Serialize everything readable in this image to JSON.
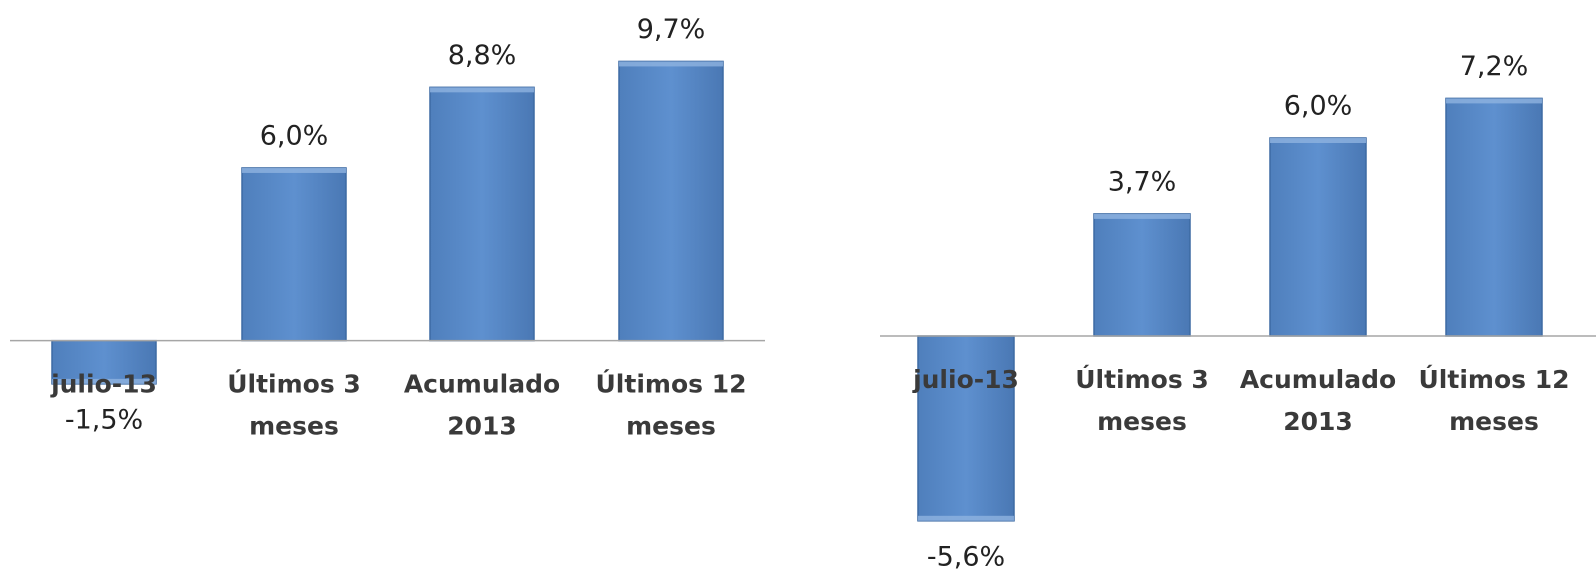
{
  "chart_data": [
    {
      "type": "bar",
      "categories": [
        [
          "julio-13"
        ],
        [
          "Últimos 3",
          "meses"
        ],
        [
          "Acumulado",
          "2013"
        ],
        [
          "Últimos 12",
          "meses"
        ]
      ],
      "values": [
        -1.5,
        6.0,
        8.8,
        9.7
      ],
      "value_labels": [
        "-1,5%",
        "6,0%",
        "8,8%",
        "9,7%"
      ],
      "color": "#5b8cc8",
      "ylim": [
        -8,
        11
      ]
    },
    {
      "type": "bar",
      "categories": [
        [
          "julio-13"
        ],
        [
          "Últimos 3",
          "meses"
        ],
        [
          "Acumulado",
          "2013"
        ],
        [
          "Últimos 12",
          "meses"
        ]
      ],
      "values": [
        -5.6,
        3.7,
        6.0,
        7.2
      ],
      "value_labels": [
        "-5,6%",
        "3,7%",
        "6,0%",
        "7,2%"
      ],
      "color": "#5b8cc8",
      "ylim": [
        -7,
        9
      ]
    }
  ]
}
